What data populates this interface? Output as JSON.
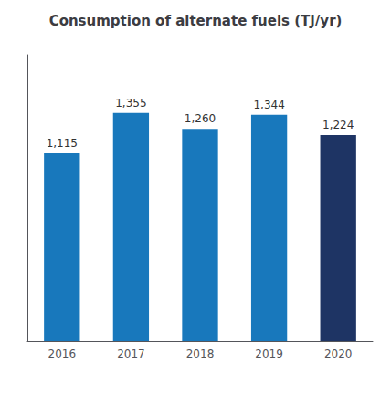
{
  "chart_data": {
    "type": "bar",
    "title": "Consumption of alternate fuels (TJ/yr)",
    "categories": [
      "2016",
      "2017",
      "2018",
      "2019",
      "2020"
    ],
    "values": [
      1115,
      1355,
      1260,
      1344,
      1224
    ],
    "value_labels": [
      "1,115",
      "1,355",
      "1,260",
      "1,344",
      "1,224"
    ],
    "data_labels": true,
    "colors": [
      "#1878bc",
      "#1878bc",
      "#1878bc",
      "#1878bc",
      "#1e3464"
    ],
    "ylim": [
      0,
      1700
    ],
    "tick_labels": "x",
    "grid": false
  }
}
